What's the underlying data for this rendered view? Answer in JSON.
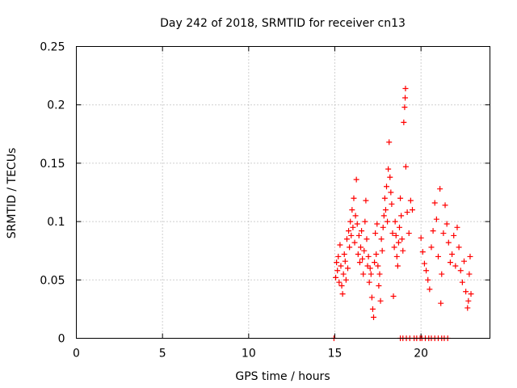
{
  "chart_data": {
    "type": "scatter",
    "title": "Day 242 of 2018, SRMTID for receiver cn13",
    "xlabel": "GPS time / hours",
    "ylabel": "SRMTID / TECUs",
    "xlim": [
      0,
      24
    ],
    "ylim": [
      0,
      0.25
    ],
    "x_ticks": [
      "0",
      "5",
      "10",
      "15",
      "20"
    ],
    "x_tick_values": [
      0,
      5,
      10,
      15,
      20
    ],
    "y_ticks": [
      "0",
      "0.05",
      "0.1",
      "0.15",
      "0.2",
      "0.25"
    ],
    "y_tick_values": [
      0,
      0.05,
      0.1,
      0.15,
      0.2,
      0.25
    ],
    "grid": true,
    "marker": "+",
    "color": "#ff0000",
    "series": [
      {
        "name": "SRMTID",
        "points": [
          [
            14.95,
            0.0
          ],
          [
            15.05,
            0.052
          ],
          [
            15.1,
            0.065
          ],
          [
            15.15,
            0.058
          ],
          [
            15.2,
            0.07
          ],
          [
            15.25,
            0.048
          ],
          [
            15.3,
            0.08
          ],
          [
            15.35,
            0.062
          ],
          [
            15.4,
            0.045
          ],
          [
            15.45,
            0.038
          ],
          [
            15.5,
            0.055
          ],
          [
            15.55,
            0.072
          ],
          [
            15.6,
            0.066
          ],
          [
            15.65,
            0.05
          ],
          [
            15.7,
            0.085
          ],
          [
            15.75,
            0.06
          ],
          [
            15.8,
            0.092
          ],
          [
            15.85,
            0.078
          ],
          [
            15.9,
            0.1
          ],
          [
            15.95,
            0.088
          ],
          [
            16.0,
            0.11
          ],
          [
            16.05,
            0.095
          ],
          [
            16.1,
            0.12
          ],
          [
            16.15,
            0.082
          ],
          [
            16.2,
            0.105
          ],
          [
            16.25,
            0.136
          ],
          [
            16.3,
            0.098
          ],
          [
            16.35,
            0.072
          ],
          [
            16.4,
            0.088
          ],
          [
            16.45,
            0.065
          ],
          [
            16.5,
            0.078
          ],
          [
            16.55,
            0.092
          ],
          [
            16.6,
            0.068
          ],
          [
            16.65,
            0.055
          ],
          [
            16.7,
            0.075
          ],
          [
            16.75,
            0.1
          ],
          [
            16.8,
            0.118
          ],
          [
            16.85,
            0.085
          ],
          [
            16.9,
            0.062
          ],
          [
            16.95,
            0.07
          ],
          [
            17.0,
            0.048
          ],
          [
            17.05,
            0.06
          ],
          [
            17.1,
            0.055
          ],
          [
            17.15,
            0.035
          ],
          [
            17.2,
            0.025
          ],
          [
            17.25,
            0.018
          ],
          [
            17.3,
            0.065
          ],
          [
            17.35,
            0.09
          ],
          [
            17.4,
            0.072
          ],
          [
            17.45,
            0.098
          ],
          [
            17.5,
            0.062
          ],
          [
            17.55,
            0.045
          ],
          [
            17.6,
            0.055
          ],
          [
            17.65,
            0.032
          ],
          [
            17.7,
            0.085
          ],
          [
            17.75,
            0.075
          ],
          [
            17.8,
            0.095
          ],
          [
            17.85,
            0.105
          ],
          [
            17.9,
            0.12
          ],
          [
            17.95,
            0.11
          ],
          [
            18.0,
            0.13
          ],
          [
            18.05,
            0.1
          ],
          [
            18.1,
            0.145
          ],
          [
            18.15,
            0.168
          ],
          [
            18.2,
            0.138
          ],
          [
            18.25,
            0.125
          ],
          [
            18.3,
            0.115
          ],
          [
            18.35,
            0.09
          ],
          [
            18.4,
            0.036
          ],
          [
            18.45,
            0.078
          ],
          [
            18.5,
            0.1
          ],
          [
            18.55,
            0.088
          ],
          [
            18.6,
            0.07
          ],
          [
            18.65,
            0.062
          ],
          [
            18.7,
            0.082
          ],
          [
            18.75,
            0.095
          ],
          [
            18.8,
            0.12
          ],
          [
            18.85,
            0.105
          ],
          [
            18.9,
            0.085
          ],
          [
            18.95,
            0.075
          ],
          [
            19.0,
            0.185
          ],
          [
            19.05,
            0.198
          ],
          [
            19.08,
            0.206
          ],
          [
            19.1,
            0.214
          ],
          [
            19.12,
            0.147
          ],
          [
            19.2,
            0.108
          ],
          [
            19.3,
            0.09
          ],
          [
            19.4,
            0.118
          ],
          [
            19.5,
            0.11
          ],
          [
            18.8,
            0.0
          ],
          [
            18.95,
            0.0
          ],
          [
            19.15,
            0.0
          ],
          [
            19.35,
            0.0
          ],
          [
            19.6,
            0.0
          ],
          [
            19.75,
            0.0
          ],
          [
            19.95,
            0.0
          ],
          [
            20.05,
            0.0
          ],
          [
            20.25,
            0.0
          ],
          [
            20.45,
            0.0
          ],
          [
            20.6,
            0.0
          ],
          [
            20.8,
            0.0
          ],
          [
            21.0,
            0.0
          ],
          [
            21.2,
            0.0
          ],
          [
            21.35,
            0.0
          ],
          [
            21.55,
            0.0
          ],
          [
            20.0,
            0.086
          ],
          [
            20.1,
            0.074
          ],
          [
            20.2,
            0.064
          ],
          [
            20.3,
            0.058
          ],
          [
            20.4,
            0.05
          ],
          [
            20.5,
            0.042
          ],
          [
            20.6,
            0.078
          ],
          [
            20.7,
            0.092
          ],
          [
            20.8,
            0.116
          ],
          [
            20.9,
            0.102
          ],
          [
            21.0,
            0.07
          ],
          [
            21.1,
            0.128
          ],
          [
            21.15,
            0.03
          ],
          [
            21.2,
            0.055
          ],
          [
            21.3,
            0.09
          ],
          [
            21.4,
            0.114
          ],
          [
            21.5,
            0.098
          ],
          [
            21.6,
            0.082
          ],
          [
            21.7,
            0.065
          ],
          [
            21.8,
            0.072
          ],
          [
            21.9,
            0.088
          ],
          [
            22.0,
            0.062
          ],
          [
            22.1,
            0.095
          ],
          [
            22.2,
            0.078
          ],
          [
            22.3,
            0.058
          ],
          [
            22.4,
            0.048
          ],
          [
            22.5,
            0.066
          ],
          [
            22.6,
            0.04
          ],
          [
            22.7,
            0.026
          ],
          [
            22.75,
            0.032
          ],
          [
            22.8,
            0.055
          ],
          [
            22.85,
            0.07
          ],
          [
            22.9,
            0.038
          ]
        ]
      }
    ]
  }
}
